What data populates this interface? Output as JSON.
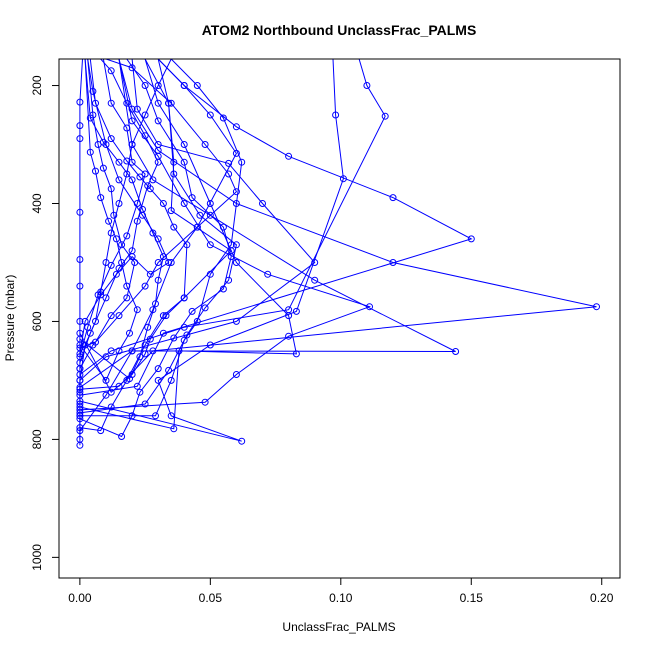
{
  "chart_data": {
    "type": "line",
    "title": "ATOM2 Northbound UnclassFrac_PALMS",
    "xlabel": "UnclassFrac_PALMS",
    "ylabel": "Pressure (mbar)",
    "xlim": [
      -0.008,
      0.207
    ],
    "ylim": [
      1035,
      155
    ],
    "y_reversed": true,
    "grid": false,
    "markers": "open-circle",
    "x_ticks": [
      0.0,
      0.05,
      0.1,
      0.15,
      0.2
    ],
    "x_tick_labels": [
      "0.00",
      "0.05",
      "0.10",
      "0.15",
      "0.20"
    ],
    "y_ticks": [
      200,
      400,
      600,
      800,
      1000
    ],
    "y_tick_labels": [
      "200",
      "400",
      "600",
      "800",
      "1000"
    ],
    "series_color": "#0000ff",
    "series": [
      {
        "points": [
          [
            0.0,
            810
          ],
          [
            0.0,
            740
          ],
          [
            0.0,
            700
          ],
          [
            0.002,
            640
          ],
          [
            0.006,
            600
          ],
          [
            0.008,
            550
          ],
          [
            0.01,
            500
          ],
          [
            0.012,
            450
          ],
          [
            0.015,
            400
          ],
          [
            0.018,
            350
          ],
          [
            0.02,
            300
          ],
          [
            0.025,
            250
          ],
          [
            0.03,
            200
          ],
          [
            0.035,
            155
          ]
        ]
      },
      {
        "points": [
          [
            0.0,
            800
          ],
          [
            0.0,
            760
          ],
          [
            0.0,
            720
          ],
          [
            0.0,
            680
          ],
          [
            0.0,
            600
          ],
          [
            0.0,
            540
          ],
          [
            0.0,
            495
          ],
          [
            0.0,
            415
          ],
          [
            0.0,
            290
          ],
          [
            0.0,
            268
          ],
          [
            0.0,
            228
          ],
          [
            0.001,
            155
          ]
        ]
      },
      {
        "points": [
          [
            0.0,
            785
          ],
          [
            0.01,
            725
          ],
          [
            0.02,
            650
          ],
          [
            0.028,
            580
          ],
          [
            0.035,
            500
          ],
          [
            0.045,
            440
          ],
          [
            0.06,
            315
          ],
          [
            0.05,
            250
          ],
          [
            0.04,
            200
          ],
          [
            0.03,
            155
          ]
        ]
      },
      {
        "points": [
          [
            0.0,
            780
          ],
          [
            0.008,
            785
          ],
          [
            0.012,
            745
          ],
          [
            0.018,
            700
          ],
          [
            0.025,
            640
          ],
          [
            0.032,
            590
          ],
          [
            0.04,
            560
          ],
          [
            0.058,
            480
          ],
          [
            0.035,
            412
          ],
          [
            0.036,
            330
          ],
          [
            0.034,
            230
          ],
          [
            0.03,
            155
          ]
        ]
      },
      {
        "points": [
          [
            0.0,
            765
          ],
          [
            0.016,
            795
          ],
          [
            0.02,
            760
          ],
          [
            0.023,
            720
          ],
          [
            0.03,
            680
          ],
          [
            0.036,
            628
          ],
          [
            0.043,
            583
          ],
          [
            0.055,
            545
          ],
          [
            0.058,
            490
          ],
          [
            0.055,
            440
          ],
          [
            0.043,
            390
          ],
          [
            0.04,
            330
          ],
          [
            0.03,
            260
          ],
          [
            0.025,
            200
          ],
          [
            0.018,
            155
          ]
        ]
      },
      {
        "points": [
          [
            0.0,
            760
          ],
          [
            0.029,
            760
          ],
          [
            0.035,
            700
          ],
          [
            0.04,
            632
          ],
          [
            0.045,
            600
          ],
          [
            0.05,
            520
          ],
          [
            0.058,
            470
          ],
          [
            0.062,
            330
          ],
          [
            0.055,
            255
          ],
          [
            0.045,
            200
          ],
          [
            0.035,
            155
          ]
        ]
      },
      {
        "points": [
          [
            0.0,
            755
          ],
          [
            0.025,
            740
          ],
          [
            0.034,
            683
          ],
          [
            0.041,
            623
          ],
          [
            0.048,
            577
          ],
          [
            0.057,
            530
          ],
          [
            0.06,
            470
          ],
          [
            0.046,
            420
          ],
          [
            0.036,
            350
          ],
          [
            0.034,
            230
          ],
          [
            0.025,
            155
          ]
        ]
      },
      {
        "points": [
          [
            0.0,
            750
          ],
          [
            0.048,
            737
          ],
          [
            0.06,
            690
          ],
          [
            0.08,
            625
          ],
          [
            0.111,
            575
          ],
          [
            0.072,
            520
          ],
          [
            0.05,
            470
          ],
          [
            0.04,
            400
          ],
          [
            0.03,
            320
          ],
          [
            0.02,
            260
          ],
          [
            0.015,
            155
          ]
        ]
      },
      {
        "points": [
          [
            0.0,
            745
          ],
          [
            0.036,
            782
          ],
          [
            0.038,
            650
          ],
          [
            0.083,
            655
          ],
          [
            0.08,
            590
          ],
          [
            0.06,
            500
          ],
          [
            0.05,
            400
          ],
          [
            0.04,
            300
          ],
          [
            0.03,
            230
          ],
          [
            0.025,
            155
          ]
        ]
      },
      {
        "points": [
          [
            0.0,
            735
          ],
          [
            0.062,
            803
          ],
          [
            0.035,
            760
          ],
          [
            0.03,
            700
          ],
          [
            0.05,
            640
          ],
          [
            0.083,
            583
          ],
          [
            0.101,
            358
          ],
          [
            0.098,
            250
          ],
          [
            0.097,
            155
          ]
        ]
      },
      {
        "points": [
          [
            0.0,
            725
          ],
          [
            0.022,
            710
          ],
          [
            0.032,
            620
          ],
          [
            0.15,
            460
          ],
          [
            0.12,
            390
          ],
          [
            0.08,
            320
          ],
          [
            0.06,
            270
          ],
          [
            0.04,
            200
          ],
          [
            0.03,
            155
          ]
        ]
      },
      {
        "points": [
          [
            0.0,
            715
          ],
          [
            0.015,
            710
          ],
          [
            0.028,
            650
          ],
          [
            0.198,
            575
          ],
          [
            0.12,
            500
          ],
          [
            0.06,
            400
          ],
          [
            0.03,
            310
          ],
          [
            0.02,
            240
          ],
          [
            0.015,
            155
          ]
        ]
      },
      {
        "points": [
          [
            0.0,
            712
          ],
          [
            0.02,
            650
          ],
          [
            0.144,
            651
          ],
          [
            0.09,
            530
          ],
          [
            0.05,
            420
          ],
          [
            0.028,
            360
          ],
          [
            0.02,
            300
          ],
          [
            0.015,
            155
          ]
        ]
      },
      {
        "points": [
          [
            0.0,
            700
          ],
          [
            0.01,
            660
          ],
          [
            0.06,
            600
          ],
          [
            0.09,
            500
          ],
          [
            0.07,
            400
          ],
          [
            0.057,
            332
          ],
          [
            0.03,
            300
          ],
          [
            0.022,
            240
          ],
          [
            0.02,
            155
          ]
        ]
      },
      {
        "points": [
          [
            0.0,
            690
          ],
          [
            0.012,
            650
          ],
          [
            0.04,
            610
          ],
          [
            0.08,
            580
          ],
          [
            0.117,
            252
          ],
          [
            0.11,
            200
          ],
          [
            0.107,
            155
          ]
        ]
      },
      {
        "points": [
          [
            0.0,
            680
          ],
          [
            0.005,
            640
          ],
          [
            0.015,
            590
          ],
          [
            0.025,
            540
          ],
          [
            0.03,
            500
          ],
          [
            0.045,
            440
          ],
          [
            0.06,
            380
          ],
          [
            0.057,
            350
          ],
          [
            0.048,
            300
          ],
          [
            0.035,
            230
          ],
          [
            0.02,
            170
          ],
          [
            0.01,
            155
          ]
        ]
      },
      {
        "points": [
          [
            0.0,
            670
          ],
          [
            0.004,
            620
          ],
          [
            0.01,
            560
          ],
          [
            0.015,
            510
          ],
          [
            0.02,
            480
          ],
          [
            0.022,
            430
          ],
          [
            0.026,
            370
          ],
          [
            0.03,
            330
          ],
          [
            0.025,
            285
          ],
          [
            0.018,
            230
          ],
          [
            0.012,
            175
          ],
          [
            0.008,
            155
          ]
        ]
      },
      {
        "points": [
          [
            0.0,
            660
          ],
          [
            0.003,
            610
          ],
          [
            0.007,
            555
          ],
          [
            0.012,
            505
          ],
          [
            0.018,
            455
          ],
          [
            0.022,
            400
          ],
          [
            0.025,
            350
          ],
          [
            0.02,
            330
          ],
          [
            0.018,
            272
          ],
          [
            0.012,
            230
          ],
          [
            0.009,
            155
          ]
        ]
      },
      {
        "points": [
          [
            0.0,
            655
          ],
          [
            0.002,
            600
          ],
          [
            0.008,
            555
          ],
          [
            0.014,
            520
          ],
          [
            0.02,
            490
          ],
          [
            0.027,
            520
          ],
          [
            0.034,
            500
          ],
          [
            0.03,
            460
          ],
          [
            0.024,
            420
          ],
          [
            0.015,
            360
          ],
          [
            0.01,
            300
          ],
          [
            0.005,
            210
          ],
          [
            0.003,
            155
          ]
        ]
      },
      {
        "points": [
          [
            0.0,
            645
          ],
          [
            0.006,
            635
          ],
          [
            0.012,
            590
          ],
          [
            0.018,
            560
          ],
          [
            0.021,
            500
          ],
          [
            0.016,
            470
          ],
          [
            0.013,
            420
          ],
          [
            0.012,
            375
          ],
          [
            0.009,
            340
          ],
          [
            0.007,
            300
          ],
          [
            0.005,
            250
          ],
          [
            0.003,
            155
          ]
        ]
      },
      {
        "points": [
          [
            0.0,
            640
          ],
          [
            0.01,
            700
          ],
          [
            0.015,
            650
          ],
          [
            0.019,
            620
          ],
          [
            0.022,
            580
          ],
          [
            0.018,
            540
          ],
          [
            0.016,
            500
          ],
          [
            0.014,
            460
          ],
          [
            0.011,
            430
          ],
          [
            0.008,
            390
          ],
          [
            0.006,
            345
          ],
          [
            0.004,
            313
          ],
          [
            0.002,
            155
          ]
        ]
      },
      {
        "points": [
          [
            0.0,
            630
          ],
          [
            0.019,
            697
          ],
          [
            0.023,
            660
          ],
          [
            0.026,
            610
          ],
          [
            0.029,
            570
          ],
          [
            0.03,
            530
          ],
          [
            0.032,
            490
          ],
          [
            0.028,
            450
          ],
          [
            0.024,
            410
          ],
          [
            0.02,
            360
          ],
          [
            0.015,
            330
          ],
          [
            0.009,
            296
          ],
          [
            0.004,
            255
          ],
          [
            0.002,
            155
          ]
        ]
      },
      {
        "points": [
          [
            0.0,
            620
          ],
          [
            0.012,
            720
          ],
          [
            0.02,
            690
          ],
          [
            0.025,
            655
          ],
          [
            0.027,
            630
          ],
          [
            0.033,
            590
          ],
          [
            0.04,
            560
          ],
          [
            0.041,
            470
          ],
          [
            0.036,
            440
          ],
          [
            0.032,
            400
          ],
          [
            0.027,
            375
          ],
          [
            0.023,
            355
          ],
          [
            0.018,
            328
          ],
          [
            0.012,
            290
          ],
          [
            0.006,
            230
          ],
          [
            0.004,
            155
          ]
        ]
      }
    ]
  }
}
